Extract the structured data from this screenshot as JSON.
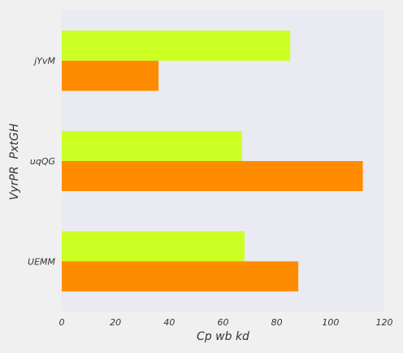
{
  "chart_data": {
    "type": "bar",
    "orientation": "horizontal",
    "title": "",
    "xlabel": "Cp wb kd",
    "ylabel": "VyrPR  PxtGH",
    "categories": [
      "jYvM",
      "uqQG",
      "UEMM"
    ],
    "series": [
      {
        "color": "#ccff22",
        "values": [
          85,
          67,
          68
        ]
      },
      {
        "color": "#ff8c00",
        "values": [
          36,
          112,
          88
        ]
      }
    ],
    "xlim": [
      0,
      120
    ],
    "xticks": [
      0,
      20,
      40,
      60,
      80,
      100,
      120
    ],
    "grid": false,
    "legend": "none"
  },
  "colors": {
    "page_background": "#f0f0f0",
    "plot_background": "#eaeaf2",
    "text": "#333333"
  }
}
